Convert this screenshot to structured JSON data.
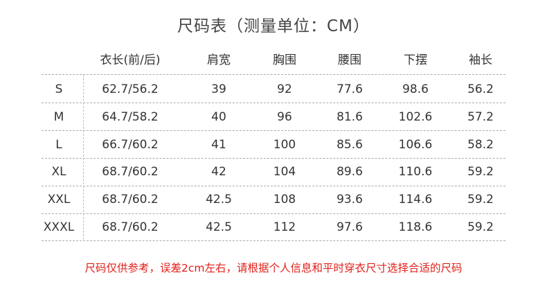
{
  "title": "尺码表（测量单位：CM）",
  "table": {
    "headers": [
      "",
      "衣长(前/后)",
      "肩宽",
      "胸围",
      "腰围",
      "下摆",
      "袖长"
    ],
    "rows": [
      [
        "S",
        "62.7/56.2",
        "39",
        "92",
        "77.6",
        "98.6",
        "56.2"
      ],
      [
        "M",
        "64.7/58.2",
        "40",
        "96",
        "81.6",
        "102.6",
        "57.2"
      ],
      [
        "L",
        "66.7/60.2",
        "41",
        "100",
        "85.6",
        "106.6",
        "58.2"
      ],
      [
        "XL",
        "68.7/60.2",
        "42",
        "104",
        "89.6",
        "110.6",
        "59.2"
      ],
      [
        "XXL",
        "68.7/60.2",
        "42.5",
        "108",
        "93.6",
        "114.6",
        "59.2"
      ],
      [
        "XXXL",
        "68.7/60.2",
        "42.5",
        "112",
        "97.6",
        "118.6",
        "59.2"
      ]
    ]
  },
  "note": "尺码仅供参考，误差2cm左右，请根据个人信息和平时穿衣尺寸选择合适的尺码",
  "colors": {
    "note": "#e0201a",
    "text": "#333333"
  }
}
